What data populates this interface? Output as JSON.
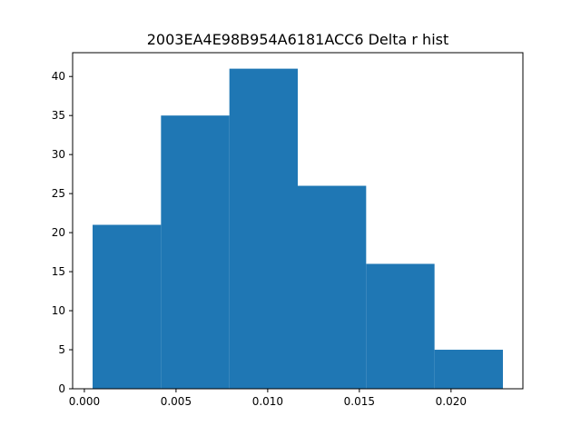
{
  "chart_data": {
    "type": "bar",
    "title": "2003EA4E98B954A6181ACC6 Delta r hist",
    "xlabel": "",
    "ylabel": "",
    "bin_edges": [
      0.00045,
      0.00418,
      0.00791,
      0.01164,
      0.01537,
      0.0191,
      0.02283
    ],
    "values": [
      21,
      35,
      41,
      26,
      16,
      5
    ],
    "xlim": [
      -0.00064,
      0.02392
    ],
    "ylim": [
      0,
      43.05
    ],
    "xticks": [
      0.0,
      0.005,
      0.01,
      0.015,
      0.02
    ],
    "xtick_labels": [
      "0.000",
      "0.005",
      "0.010",
      "0.015",
      "0.020"
    ],
    "yticks": [
      0,
      5,
      10,
      15,
      20,
      25,
      30,
      35,
      40
    ],
    "ytick_labels": [
      "0",
      "5",
      "10",
      "15",
      "20",
      "25",
      "30",
      "35",
      "40"
    ],
    "grid": false,
    "bar_color": "#1f77b4"
  }
}
